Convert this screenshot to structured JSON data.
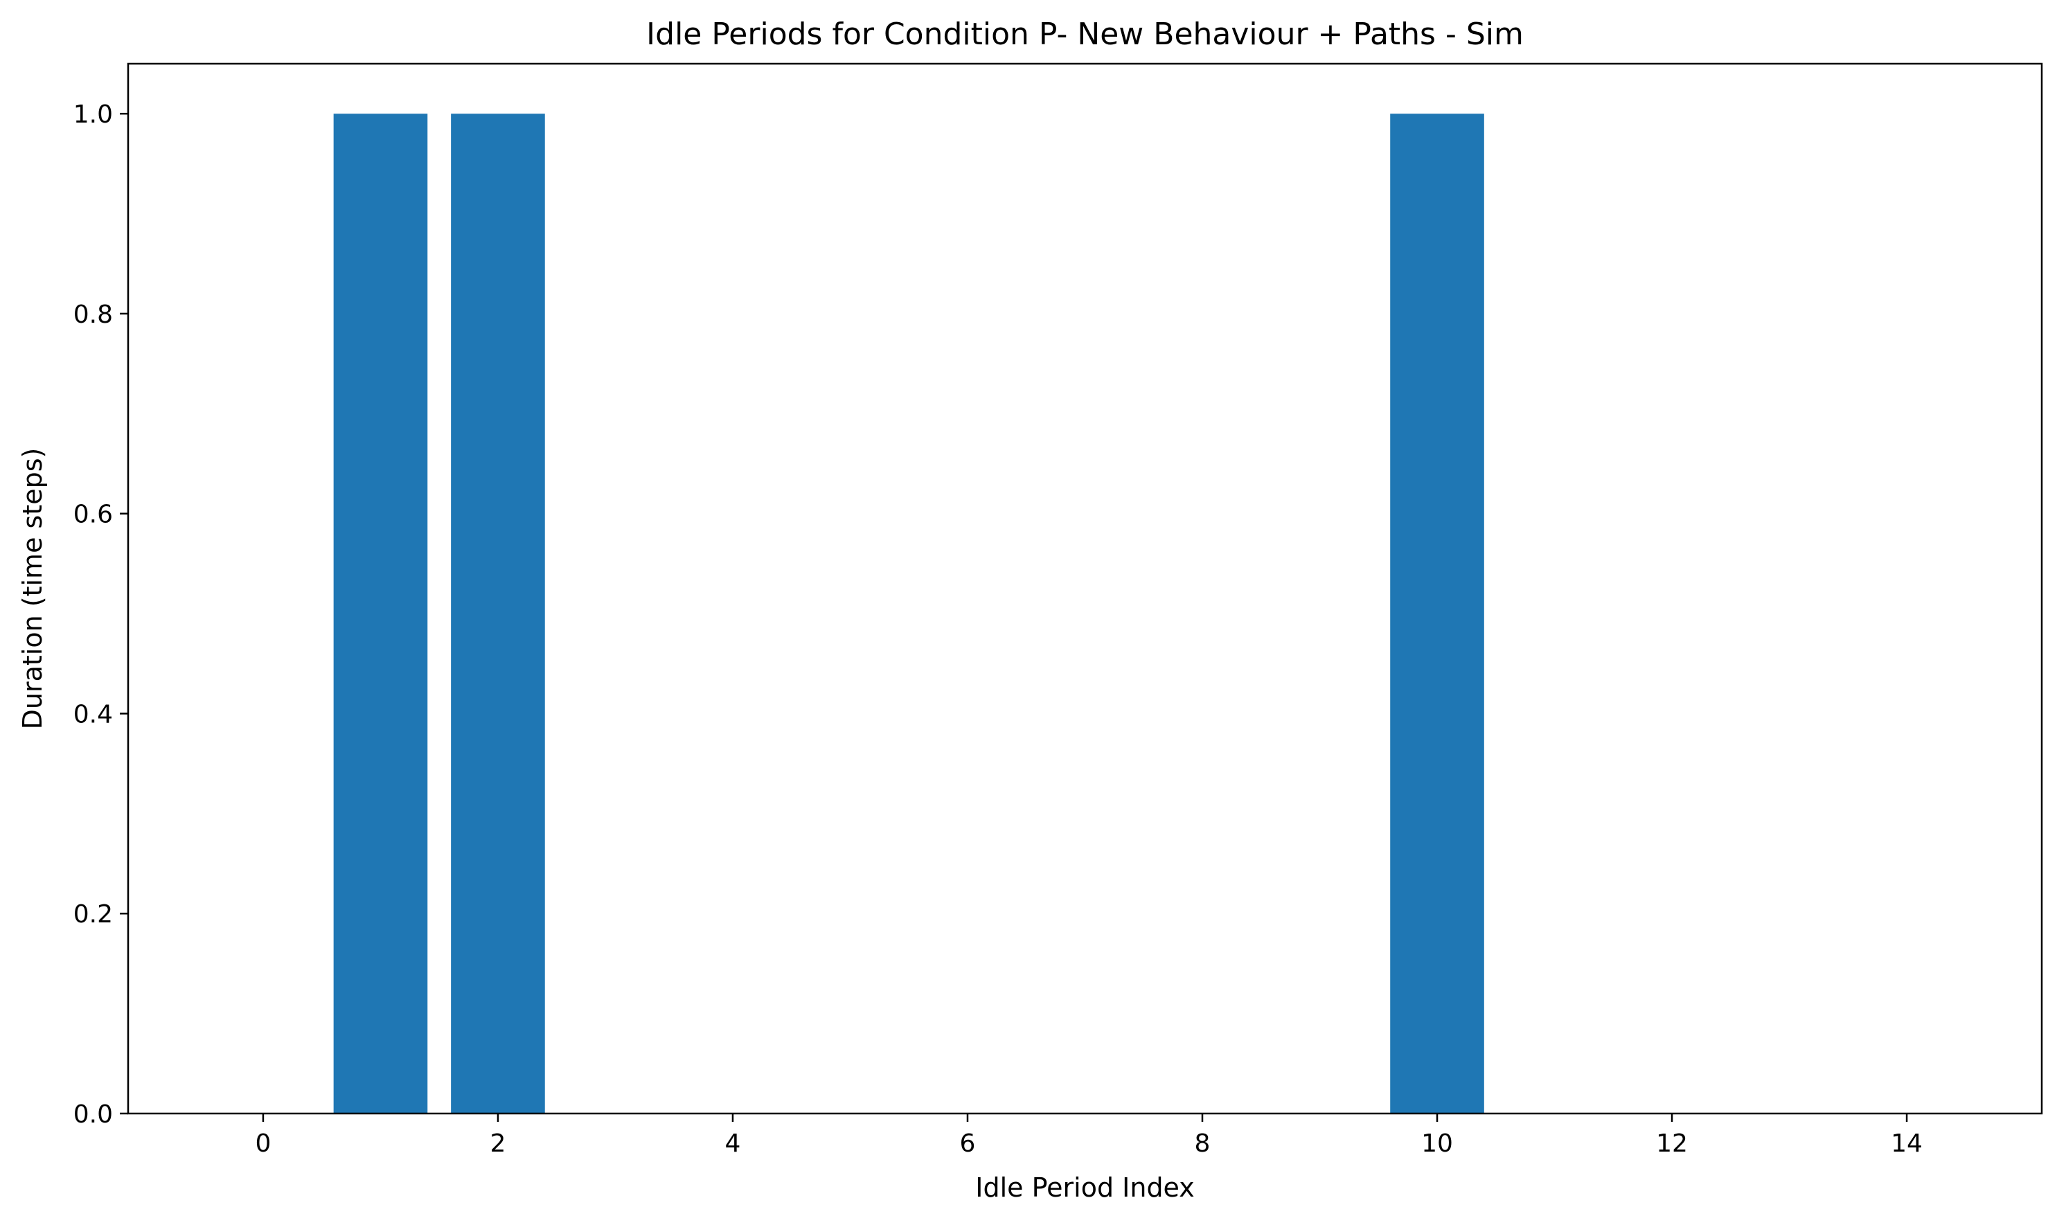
{
  "chart_data": {
    "type": "bar",
    "title": "Idle Periods for Condition P- New Behaviour + Paths - Sim",
    "xlabel": "Idle Period Index",
    "ylabel": "Duration (time steps)",
    "xlim": [
      -1.15,
      15.15
    ],
    "ylim": [
      0,
      1.05
    ],
    "x_ticks": [
      0,
      2,
      4,
      6,
      8,
      10,
      12,
      14
    ],
    "x_tick_labels": [
      "0",
      "2",
      "4",
      "6",
      "8",
      "10",
      "12",
      "14"
    ],
    "y_ticks": [
      0.0,
      0.2,
      0.4,
      0.6,
      0.8,
      1.0
    ],
    "y_tick_labels": [
      "0.0",
      "0.2",
      "0.4",
      "0.6",
      "0.8",
      "1.0"
    ],
    "x": [
      0,
      1,
      2,
      3,
      4,
      5,
      6,
      7,
      8,
      9,
      10,
      11,
      12,
      13,
      14
    ],
    "values": [
      0,
      1,
      1,
      0,
      0,
      0,
      0,
      0,
      0,
      0,
      1,
      0,
      0,
      0,
      0
    ],
    "bar_width": 0.8,
    "bar_color": "#1f77b4",
    "grid": false,
    "legend": "none"
  }
}
